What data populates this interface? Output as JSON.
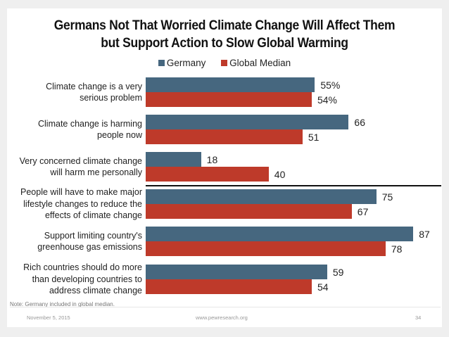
{
  "chart_data": {
    "type": "bar",
    "orientation": "horizontal",
    "title": "Germans Not That Worried Climate Change Will Affect Them but Support Action to Slow Global Warming",
    "title_lines": [
      "Germans Not That Worried Climate Change Will Affect Them",
      "but Support Action to Slow Global Warming"
    ],
    "categories": [
      [
        "Climate change is a very",
        "serious problem"
      ],
      [
        "Climate change is harming",
        "people now"
      ],
      [
        "Very concerned climate change",
        "will harm me personally"
      ],
      [
        "People will have to make major",
        "lifestyle changes to reduce the",
        "effects of climate change"
      ],
      [
        "Support limiting country's",
        "greenhouse gas emissions"
      ],
      [
        "Rich countries should do more",
        "than developing countries to",
        "address climate change"
      ]
    ],
    "series": [
      {
        "name": "Germany",
        "color": "#46677f",
        "values": [
          55,
          66,
          18,
          75,
          87,
          59
        ],
        "labels": [
          "55%",
          "66",
          "18",
          "75",
          "87",
          "59"
        ]
      },
      {
        "name": "Global Median",
        "color": "#be3a2a",
        "values": [
          54,
          51,
          40,
          67,
          78,
          54
        ],
        "labels": [
          "54%",
          "51",
          "40",
          "67",
          "78",
          "54"
        ]
      }
    ],
    "separator_after_category": 2,
    "xlim": [
      0,
      100
    ],
    "xlabel": "",
    "ylabel": "",
    "grid": false,
    "legend_position": "top-center"
  },
  "note": "Note: Germany included in global median.",
  "footer": {
    "date": "November 5, 2015",
    "url": "www.pewresearch.org",
    "page": "34"
  }
}
